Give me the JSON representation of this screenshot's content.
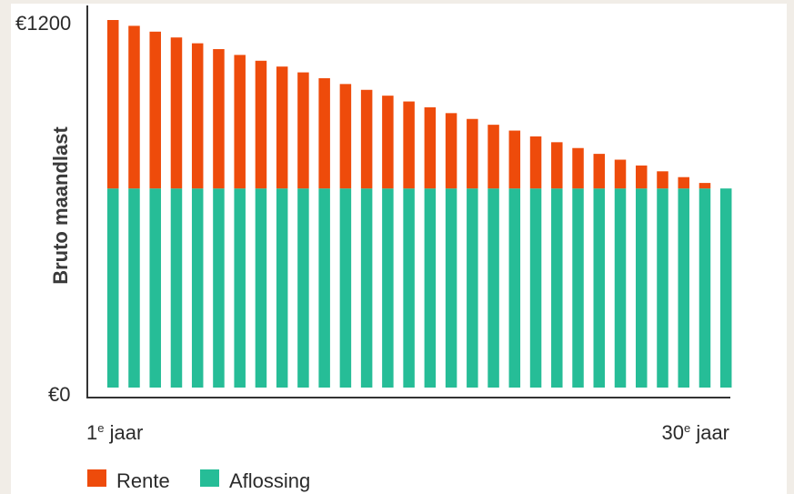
{
  "chart_data": {
    "type": "bar",
    "stacked": true,
    "ylabel": "Bruto maandlast",
    "ylim": [
      0,
      1200
    ],
    "y_tick_labels": [
      "€0",
      "€1200"
    ],
    "x_tick_labels": [
      {
        "base": "1",
        "sup": "e",
        "rest": " jaar"
      },
      {
        "base": "30",
        "sup": "e",
        "rest": " jaar"
      }
    ],
    "categories": [
      1,
      2,
      3,
      4,
      5,
      6,
      7,
      8,
      9,
      10,
      11,
      12,
      13,
      14,
      15,
      16,
      17,
      18,
      19,
      20,
      21,
      22,
      23,
      24,
      25,
      26,
      27,
      28,
      29,
      30
    ],
    "series": [
      {
        "name": "Aflossing",
        "color": "#26bd97",
        "values": [
          650,
          650,
          650,
          650,
          650,
          650,
          650,
          650,
          650,
          650,
          650,
          650,
          650,
          650,
          650,
          650,
          650,
          650,
          650,
          650,
          650,
          650,
          650,
          650,
          650,
          650,
          650,
          650,
          650,
          650
        ]
      },
      {
        "name": "Rente",
        "color": "#ee4b0b",
        "values": [
          550,
          531,
          512,
          493,
          474,
          455,
          436,
          417,
          398,
          379,
          360,
          341,
          322,
          303,
          284,
          265,
          246,
          227,
          208,
          189,
          170,
          151,
          132,
          113,
          94,
          75,
          56,
          37,
          18,
          0
        ]
      }
    ],
    "legend": {
      "placement": "bottom-left",
      "items": [
        {
          "label": "Rente",
          "color": "#ee4b0b"
        },
        {
          "label": "Aflossing",
          "color": "#26bd97"
        }
      ]
    },
    "axis_color": "#333333"
  }
}
